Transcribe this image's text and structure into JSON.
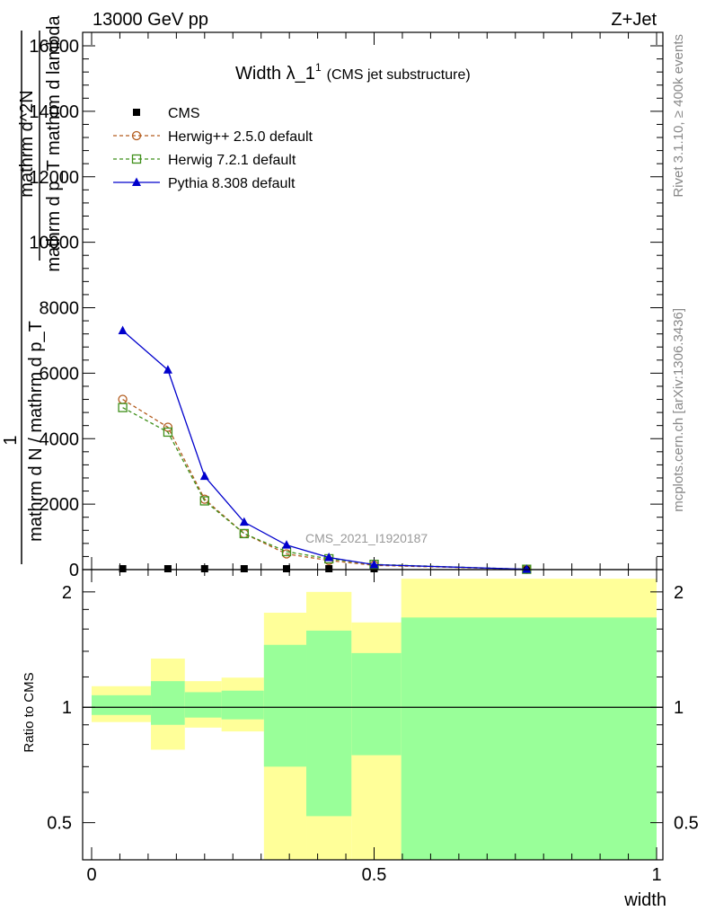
{
  "header": {
    "left": "13000 GeV pp",
    "right": "Z+Jet"
  },
  "side_labels": {
    "rivet": "Rivet 3.1.10, ≥ 400k events",
    "mcplots": "mcplots.cern.ch [arXiv:1306.3436]"
  },
  "colors": {
    "herwig_pp": "#b35c1e",
    "herwig7": "#3f8f1a",
    "pythia": "#0000cc",
    "band_outer": "#ffff99",
    "band_inner": "#99ff99"
  },
  "chart_data": [
    {
      "type": "line",
      "title": "Width λ_1",
      "title_sup": "1",
      "title_note": "(CMS jet substructure)",
      "watermark": "CMS_2021_I1920187",
      "xlabel": "width",
      "ylabel_lines": [
        "1",
        "mathrm d N / mathrm d p_T",
        "mathrm d^2N",
        "mathrm d p_T mathrm d lambda"
      ],
      "xlim": [
        0,
        1
      ],
      "ylim": [
        0,
        16000
      ],
      "yticks": [
        0,
        2000,
        4000,
        6000,
        8000,
        10000,
        12000,
        14000,
        16000
      ],
      "ytick_labels": [
        "0",
        "2000",
        "4000",
        "6000",
        "8000",
        "10000",
        "12000",
        "14000",
        "16000"
      ],
      "legend": [
        "CMS",
        "Herwig++ 2.5.0 default",
        "Herwig 7.2.1 default",
        "Pythia 8.308 default"
      ],
      "series": [
        {
          "name": "CMS",
          "key": "cms",
          "marker": "square-filled",
          "x": [
            0.055,
            0.135,
            0.2,
            0.27,
            0.345,
            0.42,
            0.5,
            0.77
          ],
          "values": [
            10,
            10,
            10,
            10,
            10,
            10,
            10,
            10
          ]
        },
        {
          "name": "Herwig++ 2.5.0 default",
          "key": "herwig_pp",
          "marker": "circle-open",
          "x": [
            0.055,
            0.135,
            0.2,
            0.27,
            0.345,
            0.42,
            0.5,
            0.77
          ],
          "values": [
            5200,
            4350,
            2150,
            1100,
            480,
            280,
            130,
            10
          ]
        },
        {
          "name": "Herwig 7.2.1 default",
          "key": "herwig7",
          "marker": "square-open",
          "x": [
            0.055,
            0.135,
            0.2,
            0.27,
            0.345,
            0.42,
            0.5,
            0.77
          ],
          "values": [
            4950,
            4200,
            2100,
            1100,
            550,
            330,
            160,
            10
          ]
        },
        {
          "name": "Pythia 8.308 default",
          "key": "pythia",
          "marker": "triangle-filled",
          "x": [
            0.055,
            0.135,
            0.2,
            0.27,
            0.345,
            0.42,
            0.5,
            0.77
          ],
          "values": [
            7300,
            6100,
            2850,
            1450,
            750,
            370,
            150,
            10
          ]
        }
      ]
    },
    {
      "type": "area",
      "ylabel": "Ratio to CMS",
      "xlabel": "width",
      "xlim": [
        0,
        1
      ],
      "ylim": [
        0.4,
        2.25
      ],
      "yticks": [
        0.5,
        1,
        2
      ],
      "ytick_labels": [
        "0.5",
        "1",
        "2"
      ],
      "xticks": [
        0,
        0.5,
        1
      ],
      "xtick_labels": [
        "0",
        "0.5",
        "1"
      ],
      "reference_line": 1,
      "bins": [
        {
          "x": [
            0,
            0.105
          ],
          "outer": [
            0.915,
            1.135
          ],
          "inner": [
            0.955,
            1.075
          ]
        },
        {
          "x": [
            0.105,
            0.165
          ],
          "outer": [
            0.775,
            1.34
          ],
          "inner": [
            0.9,
            1.17
          ]
        },
        {
          "x": [
            0.165,
            0.23
          ],
          "outer": [
            0.885,
            1.17
          ],
          "inner": [
            0.94,
            1.095
          ]
        },
        {
          "x": [
            0.23,
            0.305
          ],
          "outer": [
            0.865,
            1.195
          ],
          "inner": [
            0.93,
            1.105
          ]
        },
        {
          "x": [
            0.305,
            0.38
          ],
          "outer": [
            0.38,
            1.765
          ],
          "inner": [
            0.7,
            1.455
          ]
        },
        {
          "x": [
            0.38,
            0.46
          ],
          "outer": [
            0.38,
            2.0
          ],
          "inner": [
            0.52,
            1.585
          ]
        },
        {
          "x": [
            0.46,
            0.548
          ],
          "outer": [
            0.385,
            1.665
          ],
          "inner": [
            0.75,
            1.385
          ]
        },
        {
          "x": [
            0.548,
            1.0
          ],
          "outer": [
            0.38,
            2.165
          ],
          "inner": [
            0.38,
            1.715
          ]
        }
      ]
    }
  ]
}
